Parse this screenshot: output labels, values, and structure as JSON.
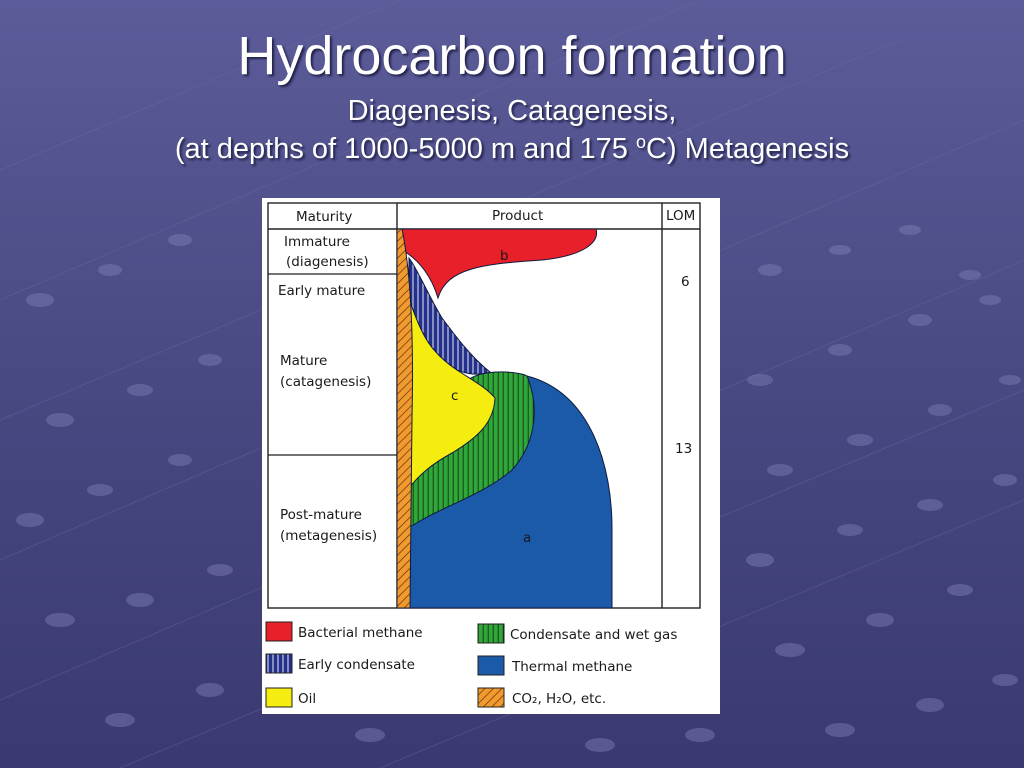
{
  "slide": {
    "title": "Hydrocarbon formation",
    "subtitle_line1": "Diagenesis, Catagenesis,",
    "subtitle_line2_pre": "(at depths of 1000-5000 m and 175 ",
    "subtitle_line2_sup": "o",
    "subtitle_line2_post": "C) Metagenesis"
  },
  "diagram": {
    "headers": {
      "maturity": "Maturity",
      "product": "Product",
      "lom": "LOM"
    },
    "stages": {
      "immature_1": "Immature",
      "immature_2": "(diagenesis)",
      "early_mature": "Early mature",
      "mature_1": "Mature",
      "mature_2": "(catagenesis)",
      "post_mature_1": "Post-mature",
      "post_mature_2": "(metagenesis)"
    },
    "lom_values": {
      "upper": "6",
      "lower": "13"
    },
    "region_labels": {
      "bacterial": "b",
      "oil": "c",
      "thermal": "a"
    },
    "legend": [
      {
        "label": "Bacterial methane",
        "color": "#e8202a",
        "pattern": "solid"
      },
      {
        "label": "Early condensate",
        "color": "#23308c",
        "pattern": "vertical-hatch"
      },
      {
        "label": "Oil",
        "color": "#f5ec10",
        "pattern": "solid"
      },
      {
        "label": "Condensate and wet gas",
        "color": "#2fa83a",
        "pattern": "vertical-hatch"
      },
      {
        "label": "Thermal methane",
        "color": "#1a5aa8",
        "pattern": "solid"
      },
      {
        "label": "CO₂, H₂O, etc.",
        "color": "#f29a2e",
        "pattern": "diagonal-hatch"
      }
    ]
  }
}
